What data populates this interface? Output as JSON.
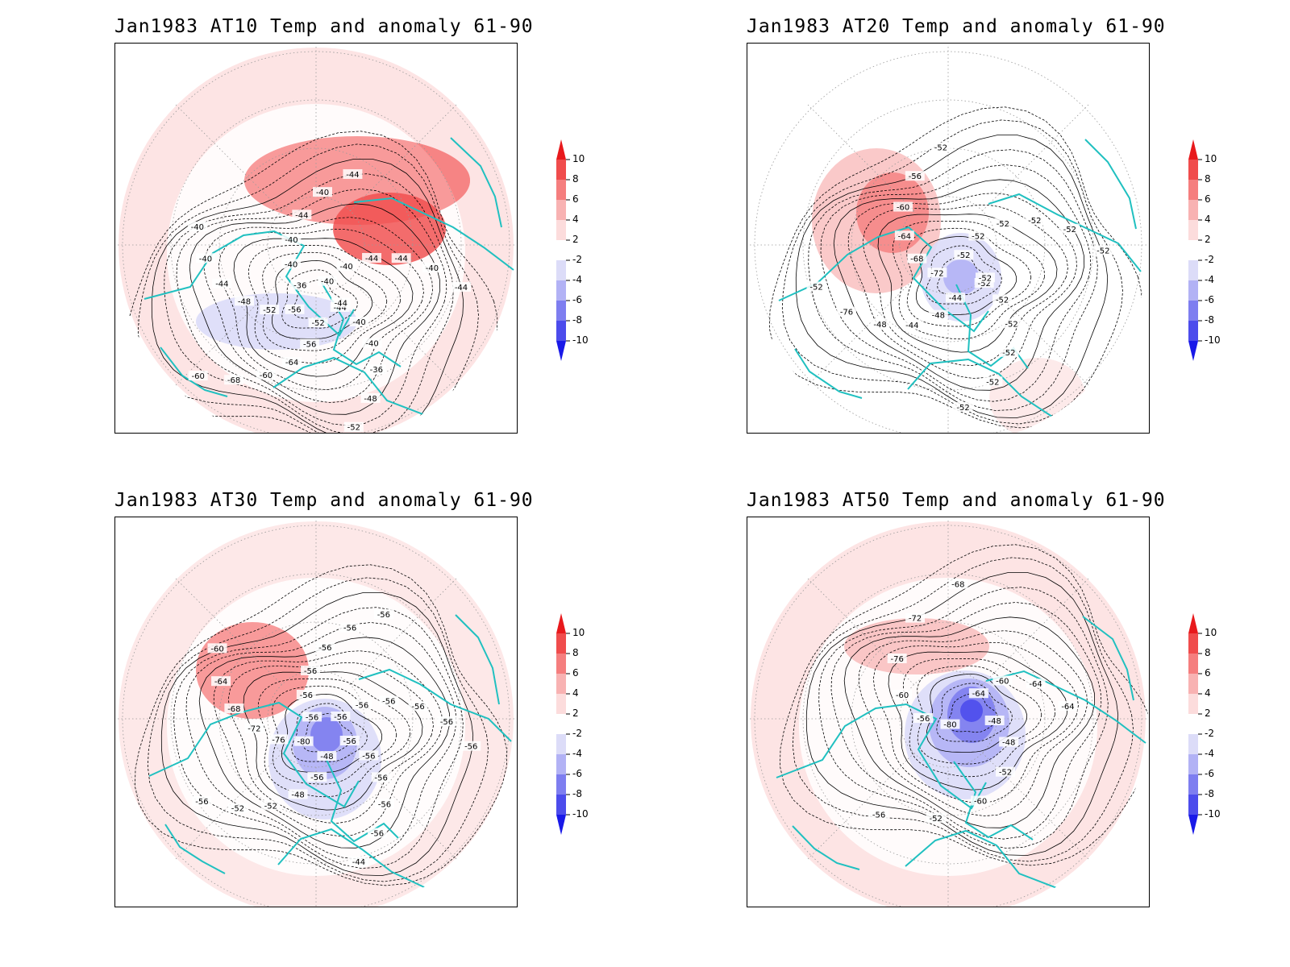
{
  "panels": [
    {
      "title": "Jan1983 AT10 Temp and anomaly 61-90",
      "contour_labels": [
        "-44",
        "-40",
        "-40",
        "-36",
        "-48",
        "-52",
        "-52",
        "-56",
        "-64",
        "-60",
        "-68",
        "-60",
        "-56",
        "-52",
        "-48",
        "-44",
        "-40",
        "-40",
        "-36",
        "-40",
        "-40",
        "-44",
        "-40",
        "-44",
        "-40",
        "-40",
        "-44",
        "-44",
        "-40",
        "-44",
        "-44"
      ],
      "anomaly_pattern": "warm-north-pacific-arctic"
    },
    {
      "title": "Jan1983 AT20 Temp and anomaly 61-90",
      "contour_labels": [
        "-52",
        "-52",
        "-52",
        "-52",
        "-52",
        "-52",
        "-44",
        "-48",
        "-44",
        "-48",
        "-76",
        "-52",
        "-72",
        "-68",
        "-64",
        "-60",
        "-56",
        "-52",
        "-52",
        "-52",
        "-52",
        "-52",
        "-52",
        "-52",
        "-52"
      ],
      "anomaly_pattern": "cold-pole-warm-pacific"
    },
    {
      "title": "Jan1983 AT30 Temp and anomaly 61-90",
      "contour_labels": [
        "-56",
        "-56",
        "-56",
        "-56",
        "-56",
        "-44",
        "-48",
        "-56",
        "-48",
        "-52",
        "-52",
        "-56",
        "-80",
        "-76",
        "-72",
        "-68",
        "-64",
        "-60",
        "-56",
        "-56",
        "-56",
        "-56",
        "-56",
        "-56",
        "-56",
        "-56",
        "-56",
        "-56",
        "-56",
        "-56"
      ],
      "anomaly_pattern": "cold-pole"
    },
    {
      "title": "Jan1983 AT50 Temp and anomaly 61-90",
      "contour_labels": [
        "-48",
        "-48",
        "-52",
        "-60",
        "-52",
        "-56",
        "-80",
        "-56",
        "-60",
        "-76",
        "-72",
        "-68",
        "-64",
        "-60",
        "-64",
        "-64"
      ],
      "anomaly_pattern": "strong-cold-pole"
    }
  ],
  "colorbar": {
    "labels": [
      "10",
      "8",
      "6",
      "4",
      "2",
      "-2",
      "-4",
      "-6",
      "-8",
      "-10"
    ],
    "colors": [
      "#e8191c",
      "#f04c4c",
      "#f57e7e",
      "#f8b2b2",
      "#fcdcdc",
      "#ffffff",
      "#dcdcf8",
      "#b2b2f5",
      "#7e7ef0",
      "#4c4cec",
      "#1919e8"
    ]
  },
  "map_colors": {
    "coast": "#20c0c0",
    "grid": "#999999",
    "contour": "#000000"
  }
}
